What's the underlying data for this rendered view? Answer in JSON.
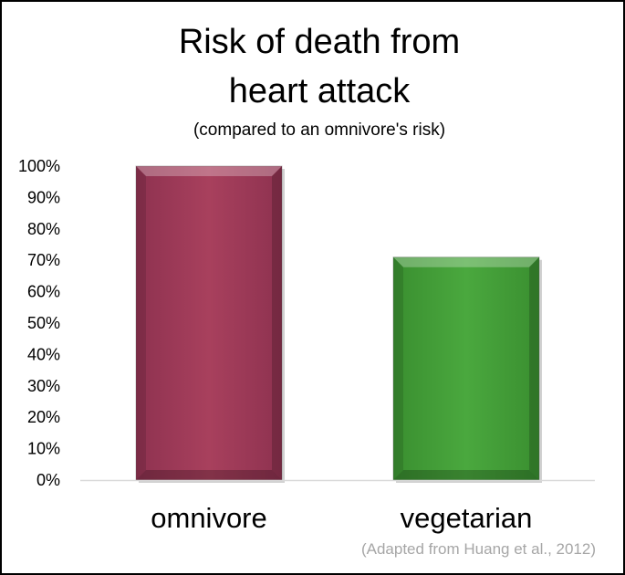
{
  "chart_data": {
    "type": "bar",
    "title_lines": [
      "Risk of death from",
      "heart attack"
    ],
    "subtitle": "(compared to an omnivore's risk)",
    "categories": [
      "omnivore",
      "vegetarian"
    ],
    "values": [
      100,
      71
    ],
    "value_unit": "%",
    "colors": [
      "#a8405d",
      "#4aa83e"
    ],
    "ylim": [
      0,
      100
    ],
    "yticks": [
      0,
      10,
      20,
      30,
      40,
      50,
      60,
      70,
      80,
      90,
      100
    ],
    "ytick_labels": [
      "0%",
      "10%",
      "20%",
      "30%",
      "40%",
      "50%",
      "60%",
      "70%",
      "80%",
      "90%",
      "100%"
    ],
    "grid": false,
    "legend": "none",
    "source": "(Adapted from Huang et al., 2012)"
  }
}
